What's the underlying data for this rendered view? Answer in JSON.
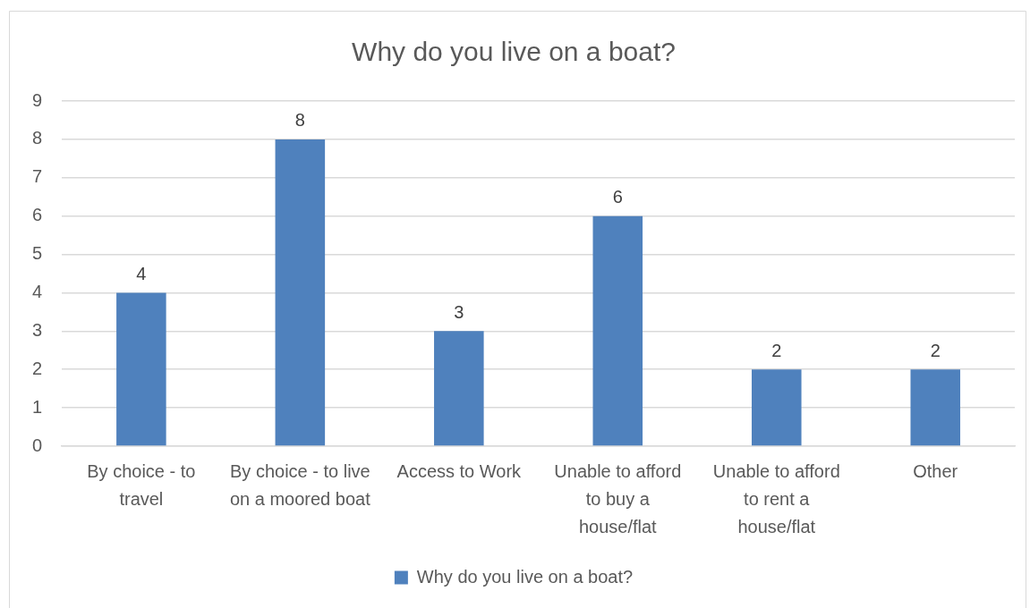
{
  "chart_data": {
    "type": "bar",
    "title": "Why do you live on a boat?",
    "categories": [
      "By choice - to travel",
      "By choice - to live on a moored boat",
      "Access to Work",
      "Unable to afford to buy a house/flat",
      "Unable to afford to rent a house/flat",
      "Other"
    ],
    "series": [
      {
        "name": "Why do you live on a boat?",
        "color": "#4f81bd",
        "values": [
          4,
          8,
          3,
          6,
          2,
          2
        ]
      }
    ],
    "ylim": [
      0,
      9
    ],
    "yticks": [
      0,
      1,
      2,
      3,
      4,
      5,
      6,
      7,
      8,
      9
    ],
    "grid": "y",
    "legend": "bottom",
    "data_labels": true
  }
}
